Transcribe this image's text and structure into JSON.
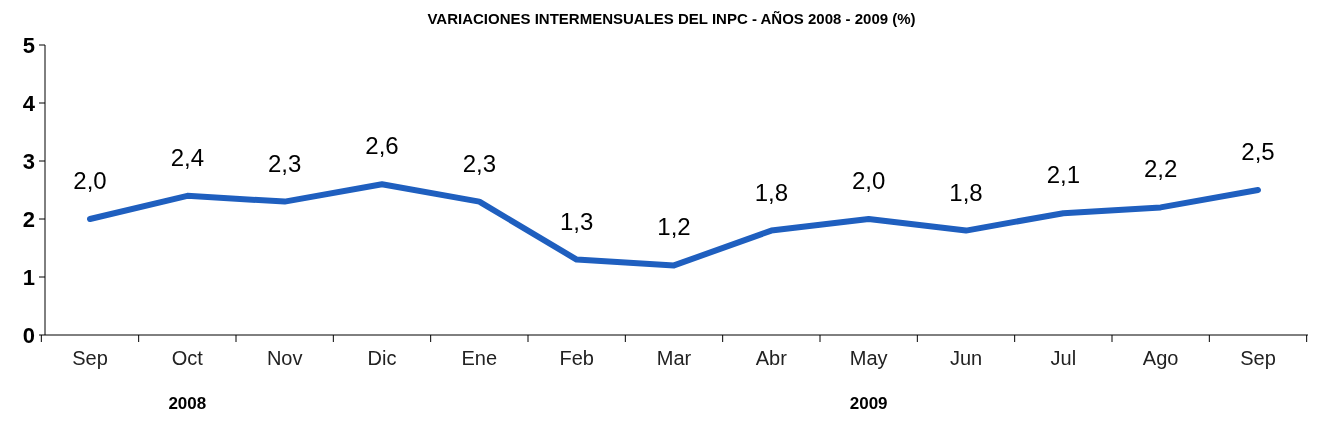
{
  "chart_data": {
    "type": "line",
    "title": "VARIACIONES INTERMENSUALES DEL INPC - AÑOS 2008 - 2009  (%)",
    "categories": [
      "Sep",
      "Oct",
      "Nov",
      "Dic",
      "Ene",
      "Feb",
      "Mar",
      "Abr",
      "May",
      "Jun",
      "Jul",
      "Ago",
      "Sep"
    ],
    "series": [
      {
        "color": "#1f5fbf",
        "values": [
          2.0,
          2.4,
          2.3,
          2.6,
          2.3,
          1.3,
          1.2,
          1.8,
          2.0,
          1.8,
          2.1,
          2.2,
          2.5
        ],
        "value_labels": [
          "2,0",
          "2,4",
          "2,3",
          "2,6",
          "2,3",
          "1,3",
          "1,2",
          "1,8",
          "2,0",
          "1,8",
          "2,1",
          "2,2",
          "2,5"
        ]
      }
    ],
    "ylim": [
      0,
      5
    ],
    "yticks": [
      0,
      1,
      2,
      3,
      4,
      5
    ],
    "grid": false,
    "marker": "none",
    "line_style": "solid",
    "annotations": [
      "2008",
      "2009"
    ]
  }
}
